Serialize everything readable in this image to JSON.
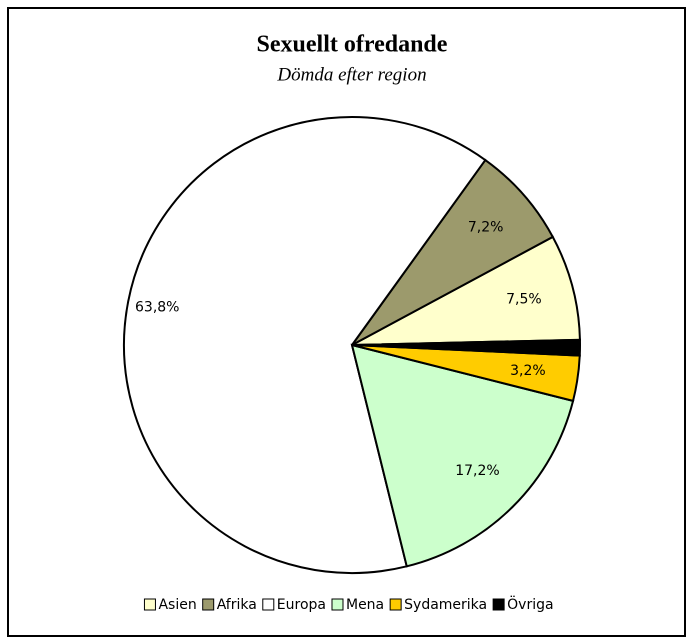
{
  "chart_data": {
    "type": "pie",
    "title": "Sexuellt ofredande",
    "subtitle": "Dömda efter region",
    "categories": [
      "Asien",
      "Afrika",
      "Europa",
      "Mena",
      "Sydamerika",
      "Övriga"
    ],
    "values": [
      7.5,
      7.2,
      63.8,
      17.2,
      3.2,
      1.1
    ],
    "value_labels": [
      "7,5%",
      "7,2%",
      "63,8%",
      "17,2%",
      "3,2%",
      null
    ],
    "colors": [
      "#ffffcc",
      "#9c9a6c",
      "#ffffff",
      "#ccffcc",
      "#ffcc00",
      "#000000"
    ],
    "legend": "bottom"
  }
}
